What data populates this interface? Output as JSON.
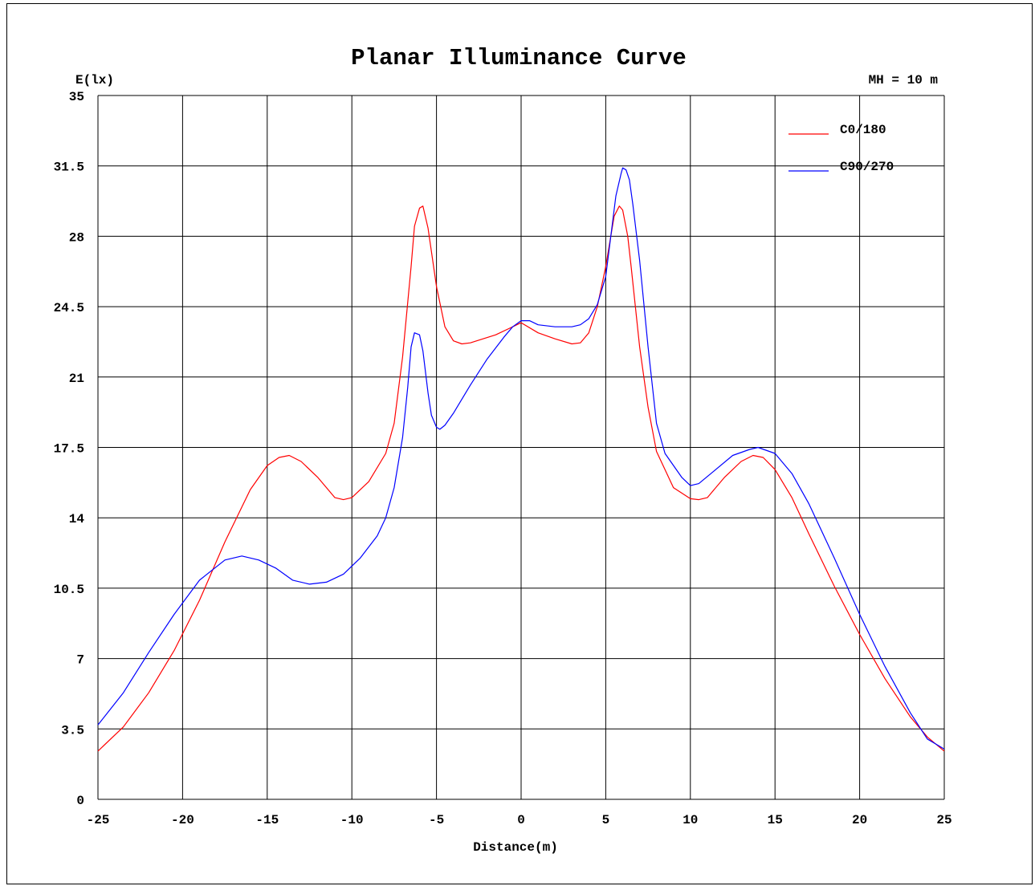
{
  "chart_data": {
    "type": "line",
    "title": "Planar Illuminance Curve",
    "ylabel": "E(lx)",
    "xlabel": "Distance(m)",
    "annotation": "MH = 10 m",
    "xlim": [
      -25,
      25
    ],
    "ylim": [
      0,
      35
    ],
    "xticks": [
      -25,
      -20,
      -15,
      -10,
      -5,
      0,
      5,
      10,
      15,
      20,
      25
    ],
    "yticks": [
      0,
      3.5,
      7,
      10.5,
      14,
      17.5,
      21,
      24.5,
      28,
      31.5,
      35
    ],
    "xtick_labels": [
      "-25",
      "-20",
      "-15",
      "-10",
      "-5",
      "0",
      "5",
      "10",
      "15",
      "20",
      "25"
    ],
    "ytick_labels": [
      "0",
      "3.5",
      "7",
      "10.5",
      "14",
      "17.5",
      "21",
      "24.5",
      "28",
      "31.5",
      "35"
    ],
    "grid": true,
    "legend_position": "top-right",
    "series": [
      {
        "name": "C0/180",
        "color": "#ff0000",
        "points": [
          [
            -25,
            2.4
          ],
          [
            -23.5,
            3.6
          ],
          [
            -22,
            5.3
          ],
          [
            -20.5,
            7.4
          ],
          [
            -19,
            9.9
          ],
          [
            -17.5,
            12.8
          ],
          [
            -16,
            15.4
          ],
          [
            -15,
            16.6
          ],
          [
            -14.3,
            17.0
          ],
          [
            -13.7,
            17.1
          ],
          [
            -13,
            16.8
          ],
          [
            -12,
            16.0
          ],
          [
            -11,
            15.0
          ],
          [
            -10.5,
            14.9
          ],
          [
            -10,
            15.0
          ],
          [
            -9,
            15.8
          ],
          [
            -8,
            17.2
          ],
          [
            -7.5,
            18.7
          ],
          [
            -7,
            22.0
          ],
          [
            -6.5,
            26.5
          ],
          [
            -6.3,
            28.5
          ],
          [
            -6,
            29.4
          ],
          [
            -5.8,
            29.5
          ],
          [
            -5.5,
            28.4
          ],
          [
            -5,
            25.5
          ],
          [
            -4.5,
            23.5
          ],
          [
            -4,
            22.8
          ],
          [
            -3.5,
            22.65
          ],
          [
            -3,
            22.7
          ],
          [
            -1.5,
            23.1
          ],
          [
            -0.5,
            23.5
          ],
          [
            0,
            23.7
          ],
          [
            1,
            23.2
          ],
          [
            2,
            22.9
          ],
          [
            3,
            22.65
          ],
          [
            3.5,
            22.7
          ],
          [
            4,
            23.2
          ],
          [
            4.5,
            24.5
          ],
          [
            5,
            26.5
          ],
          [
            5.5,
            29.0
          ],
          [
            5.8,
            29.5
          ],
          [
            6,
            29.3
          ],
          [
            6.3,
            28.0
          ],
          [
            6.5,
            26.5
          ],
          [
            7,
            22.5
          ],
          [
            7.5,
            19.5
          ],
          [
            8,
            17.3
          ],
          [
            9,
            15.5
          ],
          [
            10,
            14.95
          ],
          [
            10.5,
            14.9
          ],
          [
            11,
            15.0
          ],
          [
            12,
            16.0
          ],
          [
            13,
            16.8
          ],
          [
            13.7,
            17.1
          ],
          [
            14.3,
            17.0
          ],
          [
            15,
            16.4
          ],
          [
            16,
            15.0
          ],
          [
            17,
            13.2
          ],
          [
            18.5,
            10.6
          ],
          [
            20,
            8.2
          ],
          [
            21.5,
            6.0
          ],
          [
            23,
            4.1
          ],
          [
            24,
            3.1
          ],
          [
            25,
            2.4
          ]
        ]
      },
      {
        "name": "C90/270",
        "color": "#0000ff",
        "points": [
          [
            -25,
            3.7
          ],
          [
            -23.5,
            5.3
          ],
          [
            -22,
            7.3
          ],
          [
            -20.5,
            9.2
          ],
          [
            -19,
            10.9
          ],
          [
            -17.5,
            11.9
          ],
          [
            -16.5,
            12.1
          ],
          [
            -15.5,
            11.9
          ],
          [
            -14.5,
            11.5
          ],
          [
            -13.5,
            10.9
          ],
          [
            -12.5,
            10.7
          ],
          [
            -11.5,
            10.8
          ],
          [
            -10.5,
            11.2
          ],
          [
            -9.5,
            12.0
          ],
          [
            -8.5,
            13.1
          ],
          [
            -8,
            14.0
          ],
          [
            -7.5,
            15.5
          ],
          [
            -7,
            18.0
          ],
          [
            -6.7,
            20.5
          ],
          [
            -6.5,
            22.5
          ],
          [
            -6.3,
            23.2
          ],
          [
            -6.0,
            23.1
          ],
          [
            -5.8,
            22.3
          ],
          [
            -5.5,
            20.2
          ],
          [
            -5.3,
            19.1
          ],
          [
            -5.0,
            18.5
          ],
          [
            -4.8,
            18.4
          ],
          [
            -4.5,
            18.6
          ],
          [
            -4,
            19.2
          ],
          [
            -3,
            20.6
          ],
          [
            -2,
            21.9
          ],
          [
            -1,
            23.0
          ],
          [
            -0.5,
            23.5
          ],
          [
            0,
            23.8
          ],
          [
            0.5,
            23.8
          ],
          [
            1,
            23.6
          ],
          [
            2,
            23.5
          ],
          [
            3,
            23.5
          ],
          [
            3.5,
            23.6
          ],
          [
            4,
            23.9
          ],
          [
            4.5,
            24.6
          ],
          [
            5,
            26.0
          ],
          [
            5.3,
            28.0
          ],
          [
            5.6,
            30.0
          ],
          [
            5.9,
            31.1
          ],
          [
            6.0,
            31.4
          ],
          [
            6.2,
            31.3
          ],
          [
            6.4,
            30.8
          ],
          [
            6.6,
            29.6
          ],
          [
            7,
            26.8
          ],
          [
            7.5,
            22.5
          ],
          [
            8,
            18.7
          ],
          [
            8.5,
            17.2
          ],
          [
            9.5,
            16.0
          ],
          [
            10,
            15.6
          ],
          [
            10.5,
            15.7
          ],
          [
            11.5,
            16.4
          ],
          [
            12.5,
            17.1
          ],
          [
            13.5,
            17.4
          ],
          [
            14,
            17.5
          ],
          [
            15,
            17.2
          ],
          [
            16,
            16.2
          ],
          [
            17,
            14.7
          ],
          [
            18.5,
            12.0
          ],
          [
            20,
            9.2
          ],
          [
            21.5,
            6.6
          ],
          [
            23,
            4.3
          ],
          [
            24,
            3.0
          ],
          [
            25,
            2.5
          ]
        ]
      }
    ]
  }
}
